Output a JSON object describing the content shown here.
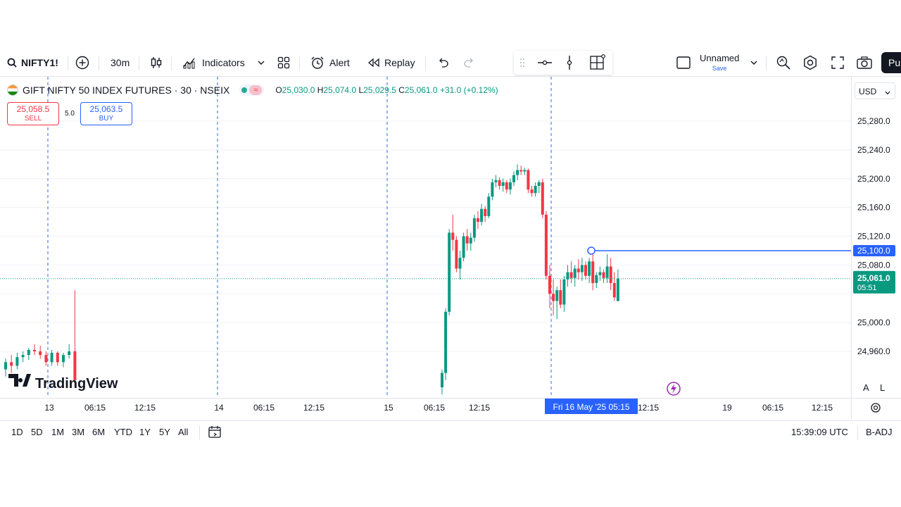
{
  "toolbar": {
    "symbol": "NIFTY1!",
    "interval": "30m",
    "indicators_label": "Indicators",
    "alert_label": "Alert",
    "replay_label": "Replay",
    "layout_name": "Unnamed",
    "layout_save": "Save",
    "publish_label": "Pu"
  },
  "legend": {
    "title": "GIFT NIFTY 50 INDEX FUTURES · 30 · NSEIX",
    "wave_glyph": "≈",
    "o_label": "O",
    "o_value": "25,030.0",
    "h_label": "H",
    "h_value": "25,074.0",
    "l_label": "L",
    "l_value": "25,029.5",
    "c_label": "C",
    "c_value": "25,061.0",
    "change": "+31.0 (+0.12%)"
  },
  "trade": {
    "sell_price": "25,058.5",
    "sell_label": "SELL",
    "spread": "5.0",
    "buy_price": "25,063.5",
    "buy_label": "BUY"
  },
  "currency": "USD",
  "chart_data": {
    "type": "candlestick",
    "price_ticks": [
      "25,280.0",
      "25,240.0",
      "25,200.0",
      "25,160.0",
      "25,120.0",
      "25,080.0",
      "25,000.0",
      "24,960.0"
    ],
    "alert_line_value": 25100.0,
    "alert_line_label": "25,100.0",
    "last_price_label": "25,061.0",
    "countdown": "05:51",
    "crosshair_time": "Fri 16 May '25  05:15",
    "time_ticks": [
      "13",
      "06:15",
      "12:15",
      "14",
      "06:15",
      "12:15",
      "15",
      "06:15",
      "12:15",
      "12:15",
      "19",
      "06:15",
      "12:15"
    ],
    "candles": [
      {
        "o": 24935,
        "h": 24950,
        "l": 24925,
        "c": 24945
      },
      {
        "o": 24945,
        "h": 24955,
        "l": 24930,
        "c": 24940
      },
      {
        "o": 24940,
        "h": 24958,
        "l": 24935,
        "c": 24952
      },
      {
        "o": 24952,
        "h": 24960,
        "l": 24945,
        "c": 24955
      },
      {
        "o": 24955,
        "h": 24965,
        "l": 24948,
        "c": 24962
      },
      {
        "o": 24962,
        "h": 24970,
        "l": 24955,
        "c": 24960
      },
      {
        "o": 24960,
        "h": 24968,
        "l": 24950,
        "c": 24955
      },
      {
        "o": 24955,
        "h": 24960,
        "l": 24940,
        "c": 24945
      },
      {
        "o": 24945,
        "h": 24962,
        "l": 24940,
        "c": 24958
      },
      {
        "o": 24958,
        "h": 24960,
        "l": 24940,
        "c": 24945
      },
      {
        "o": 24945,
        "h": 24958,
        "l": 24938,
        "c": 24955
      },
      {
        "o": 24955,
        "h": 24970,
        "l": 24950,
        "c": 24960
      },
      {
        "o": 24960,
        "h": 25045,
        "l": 24910,
        "c": 24920
      },
      {
        "gap": true
      },
      {
        "o": 24910,
        "h": 24935,
        "l": 24900,
        "c": 24930
      },
      {
        "o": 24930,
        "h": 25020,
        "l": 24920,
        "c": 25015
      },
      {
        "o": 25015,
        "h": 25130,
        "l": 25010,
        "c": 25125
      },
      {
        "o": 25125,
        "h": 25150,
        "l": 25100,
        "c": 25115
      },
      {
        "o": 25115,
        "h": 25120,
        "l": 25070,
        "c": 25075
      },
      {
        "o": 25075,
        "h": 25100,
        "l": 25060,
        "c": 25090
      },
      {
        "o": 25090,
        "h": 25125,
        "l": 25085,
        "c": 25120
      },
      {
        "o": 25120,
        "h": 25130,
        "l": 25100,
        "c": 25110
      },
      {
        "o": 25110,
        "h": 25125,
        "l": 25100,
        "c": 25118
      },
      {
        "o": 25118,
        "h": 25150,
        "l": 25112,
        "c": 25145
      },
      {
        "o": 25145,
        "h": 25155,
        "l": 25130,
        "c": 25140
      },
      {
        "o": 25140,
        "h": 25165,
        "l": 25135,
        "c": 25158
      },
      {
        "o": 25158,
        "h": 25162,
        "l": 25140,
        "c": 25148
      },
      {
        "o": 25148,
        "h": 25180,
        "l": 25145,
        "c": 25175
      },
      {
        "o": 25175,
        "h": 25200,
        "l": 25170,
        "c": 25195
      },
      {
        "o": 25195,
        "h": 25205,
        "l": 25188,
        "c": 25198
      },
      {
        "o": 25198,
        "h": 25202,
        "l": 25185,
        "c": 25190
      },
      {
        "o": 25190,
        "h": 25200,
        "l": 25182,
        "c": 25195
      },
      {
        "o": 25195,
        "h": 25198,
        "l": 25180,
        "c": 25185
      },
      {
        "o": 25185,
        "h": 25200,
        "l": 25178,
        "c": 25195
      },
      {
        "o": 25195,
        "h": 25210,
        "l": 25190,
        "c": 25205
      },
      {
        "o": 25205,
        "h": 25220,
        "l": 25198,
        "c": 25212
      },
      {
        "o": 25212,
        "h": 25218,
        "l": 25205,
        "c": 25210
      },
      {
        "o": 25210,
        "h": 25215,
        "l": 25205,
        "c": 25212
      },
      {
        "o": 25212,
        "h": 25214,
        "l": 25180,
        "c": 25185
      },
      {
        "o": 25185,
        "h": 25190,
        "l": 25175,
        "c": 25180
      },
      {
        "o": 25180,
        "h": 25195,
        "l": 25175,
        "c": 25190
      },
      {
        "o": 25190,
        "h": 25198,
        "l": 25180,
        "c": 25195
      },
      {
        "o": 25195,
        "h": 25200,
        "l": 25145,
        "c": 25150
      },
      {
        "o": 25150,
        "h": 25155,
        "l": 25060,
        "c": 25065
      },
      {
        "o": 25065,
        "h": 25080,
        "l": 25020,
        "c": 25040
      },
      {
        "o": 25040,
        "h": 25060,
        "l": 25010,
        "c": 25030
      },
      {
        "o": 25030,
        "h": 25050,
        "l": 25005,
        "c": 25045
      },
      {
        "o": 25045,
        "h": 25060,
        "l": 25020,
        "c": 25025
      },
      {
        "o": 25025,
        "h": 25065,
        "l": 25015,
        "c": 25060
      },
      {
        "o": 25060,
        "h": 25080,
        "l": 25050,
        "c": 25070
      },
      {
        "o": 25070,
        "h": 25085,
        "l": 25055,
        "c": 25062
      },
      {
        "o": 25062,
        "h": 25080,
        "l": 25050,
        "c": 25075
      },
      {
        "o": 25075,
        "h": 25088,
        "l": 25060,
        "c": 25070
      },
      {
        "o": 25070,
        "h": 25090,
        "l": 25058,
        "c": 25080
      },
      {
        "o": 25080,
        "h": 25085,
        "l": 25060,
        "c": 25065
      },
      {
        "o": 25065,
        "h": 25090,
        "l": 25055,
        "c": 25085
      },
      {
        "o": 25085,
        "h": 25095,
        "l": 25045,
        "c": 25055
      },
      {
        "o": 25055,
        "h": 25070,
        "l": 25048,
        "c": 25066
      },
      {
        "o": 25066,
        "h": 25078,
        "l": 25058,
        "c": 25070
      },
      {
        "o": 25070,
        "h": 25074,
        "l": 25055,
        "c": 25062
      },
      {
        "o": 25062,
        "h": 25095,
        "l": 25055,
        "c": 25078
      },
      {
        "o": 25078,
        "h": 25090,
        "l": 25045,
        "c": 25055
      },
      {
        "o": 25055,
        "h": 25070,
        "l": 25030,
        "c": 25035
      },
      {
        "o": 25030,
        "h": 25074,
        "l": 25029.5,
        "c": 25061
      }
    ]
  },
  "ranges": [
    "1D",
    "5D",
    "1M",
    "3M",
    "6M",
    "YTD",
    "1Y",
    "5Y",
    "All"
  ],
  "clock": "15:39:09 UTC",
  "adjust": "B-ADJ",
  "scale_a": "A",
  "scale_l": "L",
  "watermark": "TradingView",
  "colors": {
    "up": "#089981",
    "down": "#f23645",
    "accent": "#2962ff"
  }
}
